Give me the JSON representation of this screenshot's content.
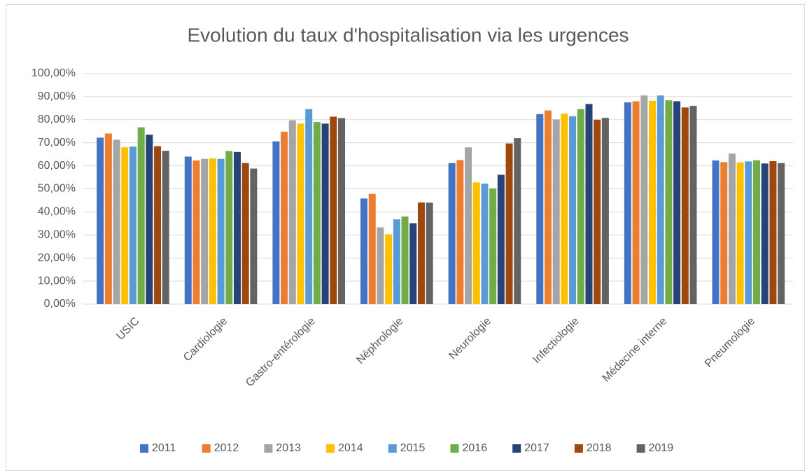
{
  "chart_data": {
    "type": "bar",
    "title": "Evolution du taux d'hospitalisation via les urgences",
    "categories": [
      "USIC",
      "Cardiologie",
      "Gastro-entérologie",
      "Néphrologie",
      "Neurologie",
      "Infectiologie",
      "Médecine interne",
      "Pneumologie"
    ],
    "series": [
      {
        "name": "2011",
        "color": "#4472c4",
        "values": [
          72.2,
          64.0,
          70.6,
          45.8,
          61.2,
          82.4,
          87.5,
          62.3
        ]
      },
      {
        "name": "2012",
        "color": "#ed7d31",
        "values": [
          74.0,
          62.3,
          74.8,
          47.8,
          62.5,
          84.0,
          88.0,
          61.6
        ]
      },
      {
        "name": "2013",
        "color": "#a5a5a5",
        "values": [
          71.3,
          63.0,
          79.7,
          33.3,
          68.0,
          80.1,
          90.5,
          65.3
        ]
      },
      {
        "name": "2014",
        "color": "#ffc000",
        "values": [
          68.0,
          63.2,
          78.3,
          30.3,
          52.8,
          82.6,
          88.2,
          61.5
        ]
      },
      {
        "name": "2015",
        "color": "#5b9bd5",
        "values": [
          68.3,
          63.0,
          84.6,
          36.8,
          52.3,
          81.5,
          90.5,
          61.9
        ]
      },
      {
        "name": "2016",
        "color": "#70ad47",
        "values": [
          76.7,
          66.4,
          79.0,
          38.0,
          50.2,
          84.6,
          88.4,
          62.4
        ]
      },
      {
        "name": "2017",
        "color": "#264478",
        "values": [
          73.5,
          66.0,
          78.3,
          35.1,
          56.1,
          86.8,
          88.0,
          61.0
        ]
      },
      {
        "name": "2018",
        "color": "#9e480e",
        "values": [
          68.5,
          61.2,
          81.3,
          44.1,
          69.7,
          80.0,
          85.3,
          62.0
        ]
      },
      {
        "name": "2019",
        "color": "#636363",
        "values": [
          66.5,
          58.8,
          80.7,
          44.0,
          72.0,
          80.8,
          86.0,
          61.2
        ]
      }
    ],
    "ylim": [
      0,
      100
    ],
    "yticks": [
      {
        "value": 0,
        "label": "0,00%"
      },
      {
        "value": 10,
        "label": "10,00%"
      },
      {
        "value": 20,
        "label": "20,00%"
      },
      {
        "value": 30,
        "label": "30,00%"
      },
      {
        "value": 40,
        "label": "40,00%"
      },
      {
        "value": 50,
        "label": "50,00%"
      },
      {
        "value": 60,
        "label": "60,00%"
      },
      {
        "value": 70,
        "label": "70,00%"
      },
      {
        "value": 80,
        "label": "80,00%"
      },
      {
        "value": 90,
        "label": "90,00%"
      },
      {
        "value": 100,
        "label": "100,00%"
      }
    ],
    "grid": true,
    "legend": "bottom"
  }
}
